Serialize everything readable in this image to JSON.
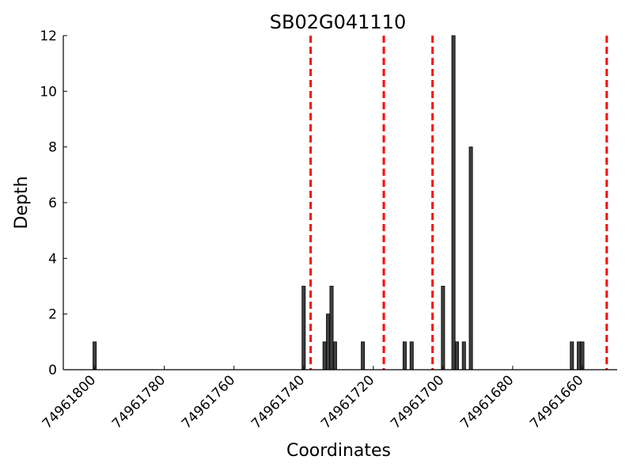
{
  "chart_data": {
    "type": "bar",
    "title": "SB02G041110",
    "xlabel": "Coordinates",
    "ylabel": "Depth",
    "x_axis_reversed": true,
    "xlim": [
      74961809,
      74961650
    ],
    "ylim": [
      0,
      12
    ],
    "x_ticks": [
      74961800,
      74961780,
      74961760,
      74961740,
      74961720,
      74961700,
      74961680,
      74961660
    ],
    "x_tick_labels": [
      "74961800",
      "74961780",
      "74961760",
      "74961740",
      "74961720",
      "74961700",
      "74961680",
      "74961660"
    ],
    "y_ticks": [
      0,
      2,
      4,
      6,
      8,
      10,
      12
    ],
    "y_tick_labels": [
      "0",
      "2",
      "4",
      "6",
      "8",
      "10",
      "12"
    ],
    "grid": false,
    "bar_color": "#3f3f3f",
    "reference_line_color": "#ff0000",
    "reference_lines": [
      74961738,
      74961717,
      74961703,
      74961653
    ],
    "bars": [
      {
        "x": 74961800,
        "depth": 1
      },
      {
        "x": 74961740,
        "depth": 3
      },
      {
        "x": 74961734,
        "depth": 1
      },
      {
        "x": 74961733,
        "depth": 2
      },
      {
        "x": 74961732,
        "depth": 3
      },
      {
        "x": 74961731,
        "depth": 1
      },
      {
        "x": 74961723,
        "depth": 1
      },
      {
        "x": 74961711,
        "depth": 1
      },
      {
        "x": 74961709,
        "depth": 1
      },
      {
        "x": 74961700,
        "depth": 3
      },
      {
        "x": 74961697,
        "depth": 12
      },
      {
        "x": 74961696,
        "depth": 1
      },
      {
        "x": 74961694,
        "depth": 1
      },
      {
        "x": 74961692,
        "depth": 8
      },
      {
        "x": 74961663,
        "depth": 1
      },
      {
        "x": 74961661,
        "depth": 1
      },
      {
        "x": 74961660,
        "depth": 1
      }
    ]
  }
}
